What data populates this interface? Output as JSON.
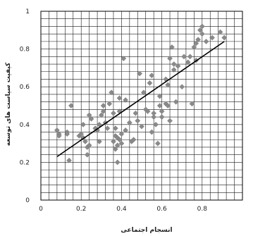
{
  "chart_data": {
    "type": "scatter",
    "title": "",
    "xlabel": "انسجام اجتماعی",
    "ylabel": "کیفیت سیاست های توسعه",
    "xlim": [
      0,
      1
    ],
    "ylim": [
      0,
      1
    ],
    "x_ticks": [
      0,
      0.2,
      0.4,
      0.6,
      0.8
    ],
    "x_tick_labels": [
      "0",
      "0.2",
      "0.4",
      "0.6",
      "0.8"
    ],
    "y_ticks": [
      0,
      0.2,
      0.4,
      0.6,
      0.8,
      1
    ],
    "y_tick_labels": [
      "0",
      "0.2",
      "0.4",
      "0.6",
      "0.8",
      "1"
    ],
    "grid": true,
    "marker": "diamond",
    "marker_color": "#8a8a8a",
    "line_color": "#000000",
    "trendline": {
      "x": [
        0.08,
        0.91
      ],
      "y": [
        0.23,
        0.84
      ]
    },
    "points": [
      [
        0.08,
        0.37
      ],
      [
        0.09,
        0.35
      ],
      [
        0.09,
        0.34
      ],
      [
        0.13,
        0.36
      ],
      [
        0.13,
        0.35
      ],
      [
        0.14,
        0.21
      ],
      [
        0.15,
        0.5
      ],
      [
        0.19,
        0.34
      ],
      [
        0.2,
        0.35
      ],
      [
        0.21,
        0.33
      ],
      [
        0.21,
        0.4
      ],
      [
        0.22,
        0.31
      ],
      [
        0.23,
        0.28
      ],
      [
        0.23,
        0.24
      ],
      [
        0.24,
        0.29
      ],
      [
        0.24,
        0.45
      ],
      [
        0.25,
        0.43
      ],
      [
        0.27,
        0.38
      ],
      [
        0.28,
        0.37
      ],
      [
        0.29,
        0.31
      ],
      [
        0.29,
        0.4
      ],
      [
        0.3,
        0.45
      ],
      [
        0.31,
        0.47
      ],
      [
        0.31,
        0.5
      ],
      [
        0.32,
        0.41
      ],
      [
        0.33,
        0.38
      ],
      [
        0.34,
        0.51
      ],
      [
        0.35,
        0.57
      ],
      [
        0.36,
        0.31
      ],
      [
        0.36,
        0.46
      ],
      [
        0.37,
        0.27
      ],
      [
        0.37,
        0.38
      ],
      [
        0.37,
        0.34
      ],
      [
        0.38,
        0.33
      ],
      [
        0.38,
        0.29
      ],
      [
        0.38,
        0.2
      ],
      [
        0.39,
        0.54
      ],
      [
        0.39,
        0.47
      ],
      [
        0.39,
        0.32
      ],
      [
        0.4,
        0.35
      ],
      [
        0.4,
        0.3
      ],
      [
        0.41,
        0.75
      ],
      [
        0.42,
        0.53
      ],
      [
        0.42,
        0.37
      ],
      [
        0.44,
        0.41
      ],
      [
        0.45,
        0.31
      ],
      [
        0.46,
        0.32
      ],
      [
        0.47,
        0.46
      ],
      [
        0.48,
        0.42
      ],
      [
        0.49,
        0.67
      ],
      [
        0.5,
        0.39
      ],
      [
        0.51,
        0.57
      ],
      [
        0.52,
        0.48
      ],
      [
        0.53,
        0.47
      ],
      [
        0.54,
        0.62
      ],
      [
        0.55,
        0.36
      ],
      [
        0.55,
        0.66
      ],
      [
        0.56,
        0.44
      ],
      [
        0.56,
        0.46
      ],
      [
        0.57,
        0.4
      ],
      [
        0.58,
        0.3
      ],
      [
        0.59,
        0.5
      ],
      [
        0.59,
        0.55
      ],
      [
        0.6,
        0.44
      ],
      [
        0.6,
        0.47
      ],
      [
        0.62,
        0.51
      ],
      [
        0.62,
        0.64
      ],
      [
        0.63,
        0.5
      ],
      [
        0.63,
        0.61
      ],
      [
        0.64,
        0.42
      ],
      [
        0.64,
        0.75
      ],
      [
        0.65,
        0.81
      ],
      [
        0.66,
        0.72
      ],
      [
        0.66,
        0.69
      ],
      [
        0.67,
        0.52
      ],
      [
        0.68,
        0.71
      ],
      [
        0.7,
        0.6
      ],
      [
        0.71,
        0.76
      ],
      [
        0.73,
        0.73
      ],
      [
        0.74,
        0.76
      ],
      [
        0.75,
        0.51
      ],
      [
        0.76,
        0.81
      ],
      [
        0.77,
        0.83
      ],
      [
        0.77,
        0.74
      ],
      [
        0.78,
        0.85
      ],
      [
        0.79,
        0.9
      ],
      [
        0.8,
        0.88
      ],
      [
        0.8,
        0.92
      ],
      [
        0.82,
        0.84
      ],
      [
        0.85,
        0.86
      ],
      [
        0.89,
        0.89
      ],
      [
        0.91,
        0.86
      ]
    ]
  }
}
